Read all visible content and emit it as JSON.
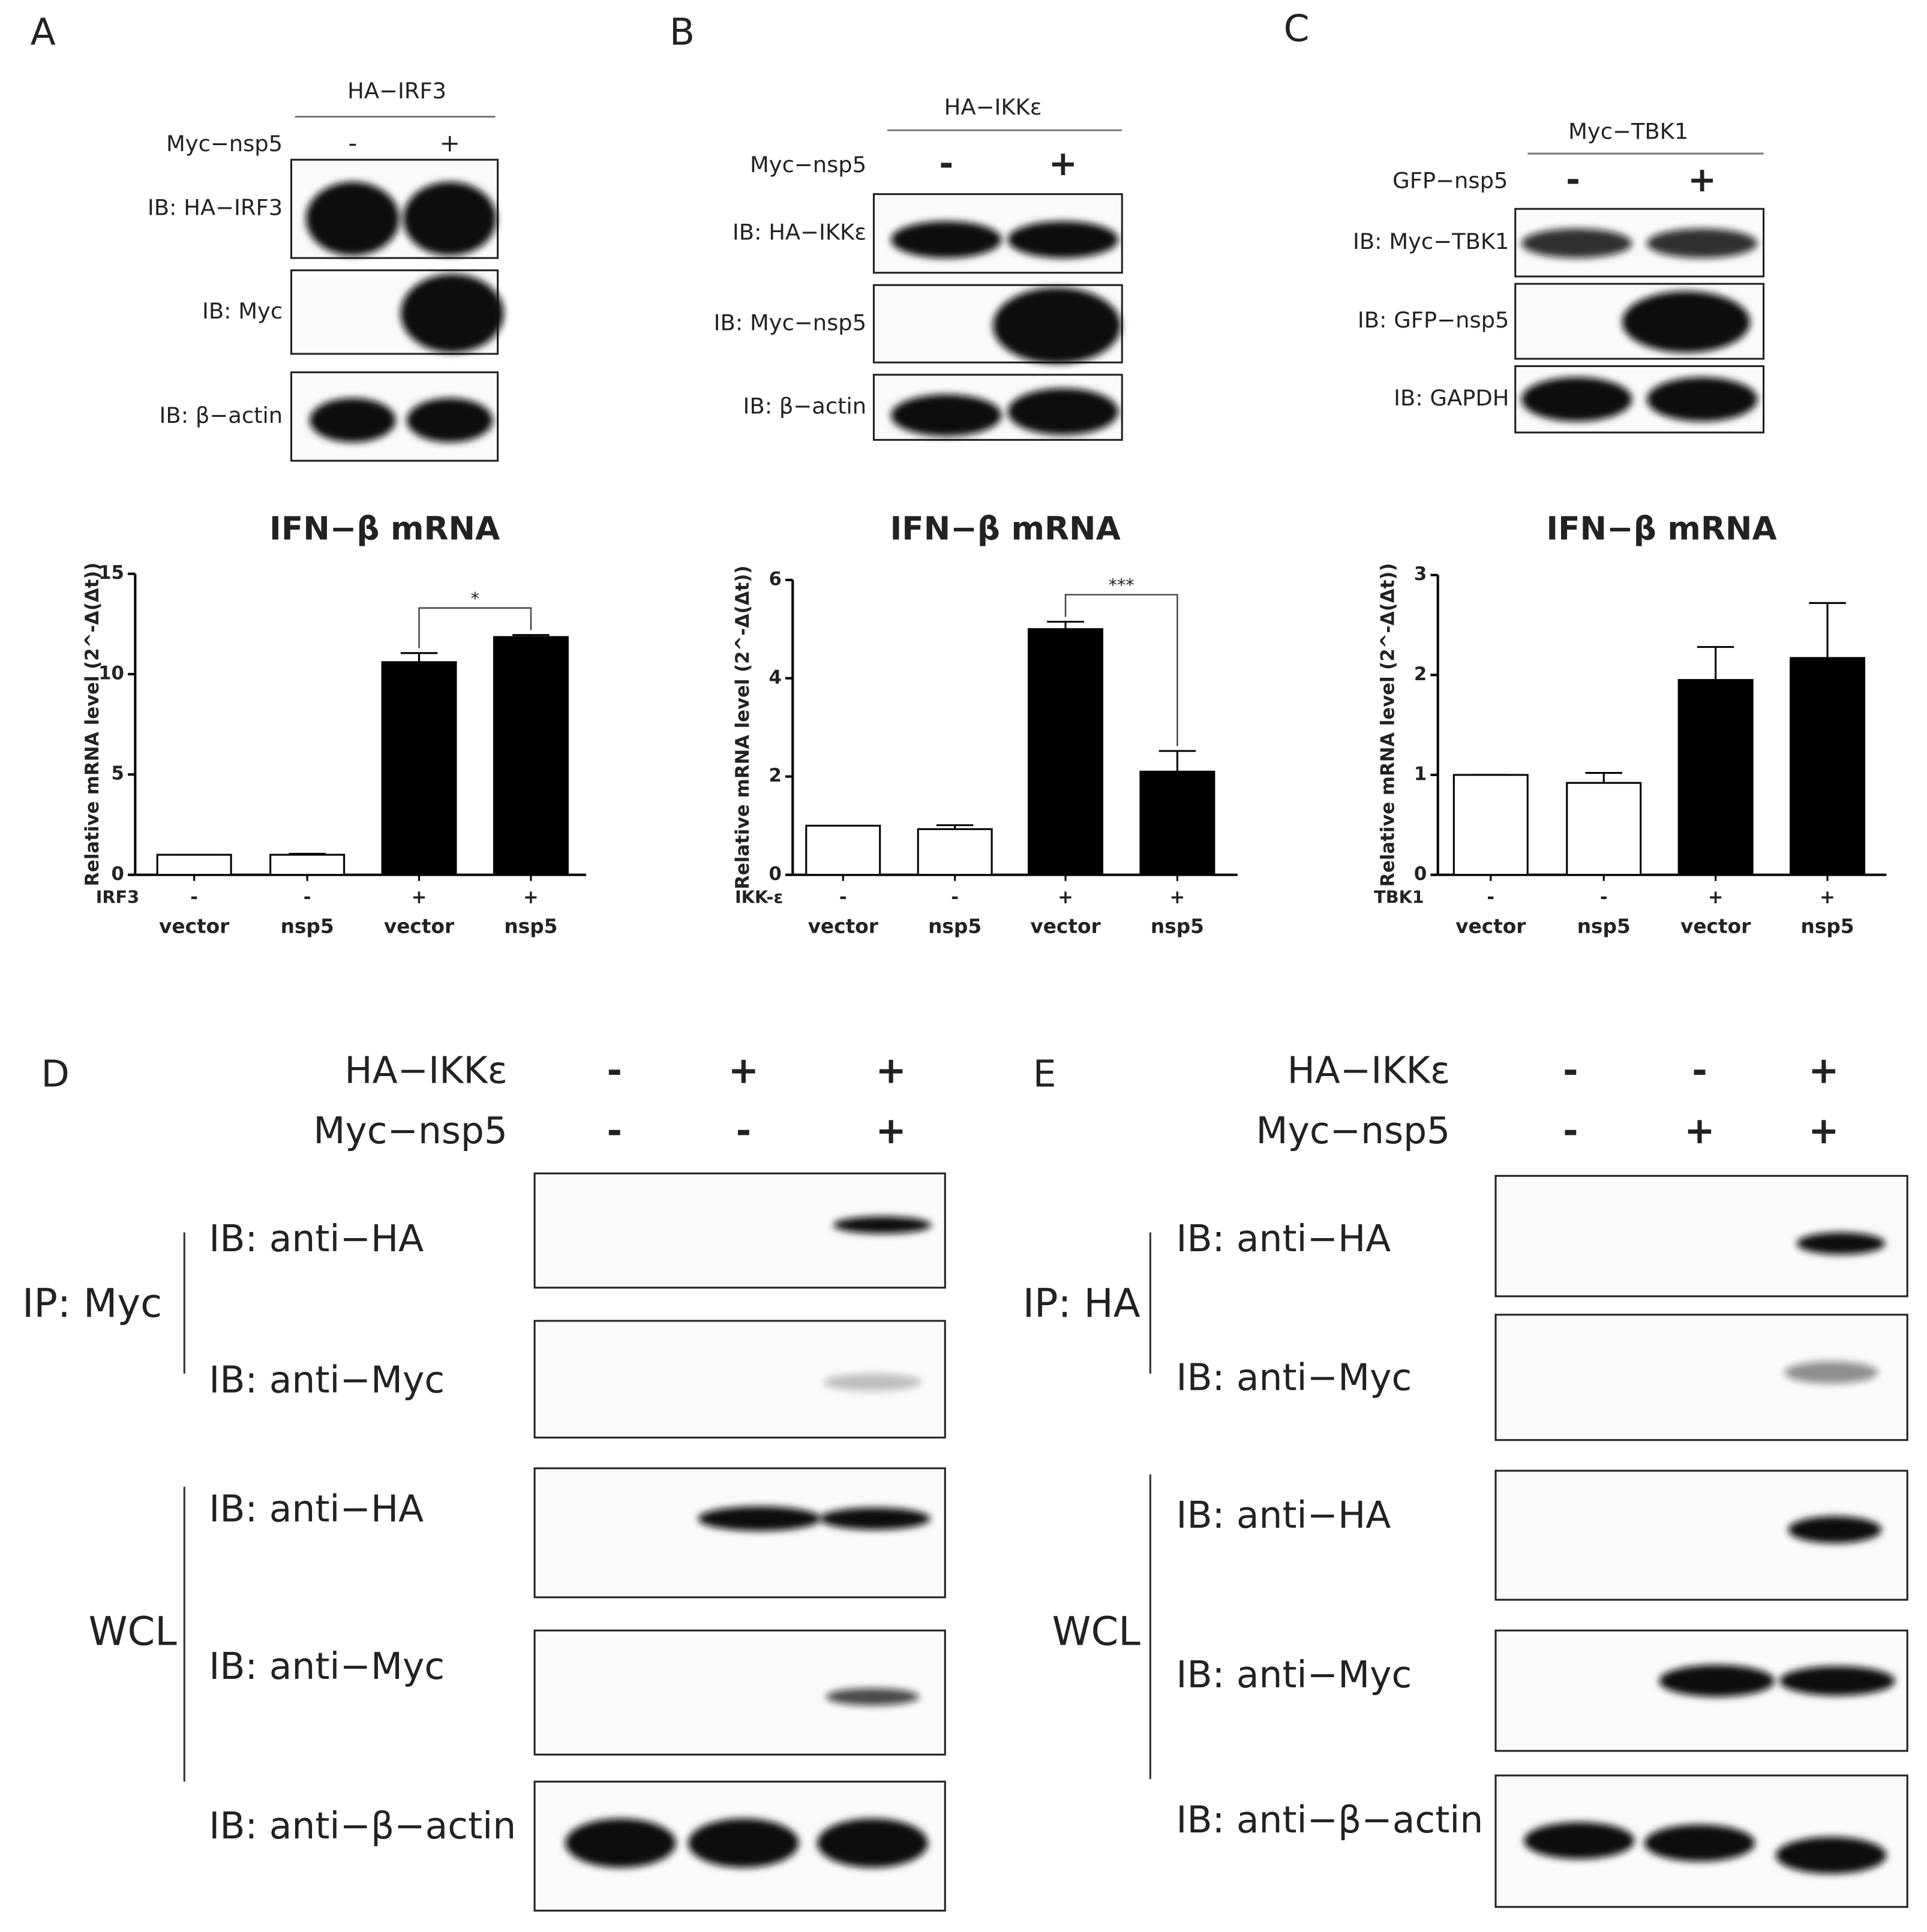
{
  "panels": {
    "A": {
      "letter": "A",
      "header": "HA−IRF3",
      "rows": [
        {
          "label": "Myc−nsp5",
          "signs": [
            "-",
            "+"
          ]
        }
      ],
      "blots": [
        "IB: HA−IRF3",
        "IB: Myc",
        "IB: β−actin"
      ]
    },
    "B": {
      "letter": "B",
      "header": "HA−IKKε",
      "rows": [
        {
          "label": "Myc−nsp5",
          "signs": [
            "-",
            "+"
          ]
        }
      ],
      "blots": [
        "IB: HA−IKKε",
        "IB: Myc−nsp5",
        "IB: β−actin"
      ]
    },
    "C": {
      "letter": "C",
      "header": "Myc−TBK1",
      "rows": [
        {
          "label": "GFP−nsp5",
          "signs": [
            "-",
            "+"
          ]
        }
      ],
      "blots": [
        "IB: Myc−TBK1",
        "IB: GFP−nsp5",
        "IB: GAPDH"
      ]
    },
    "D": {
      "letter": "D",
      "rows": [
        {
          "label": "HA−IKKε",
          "signs": [
            "-",
            "+",
            "+"
          ]
        },
        {
          "label": "Myc−nsp5",
          "signs": [
            "-",
            "-",
            "+"
          ]
        }
      ],
      "groups": [
        "IP: Myc",
        "WCL"
      ],
      "blots": [
        "IB: anti−HA",
        "IB: anti−Myc",
        "IB: anti−HA",
        "IB: anti−Myc",
        "IB: anti−β−actin"
      ]
    },
    "E": {
      "letter": "E",
      "rows": [
        {
          "label": "HA−IKKε",
          "signs": [
            "-",
            "-",
            "+"
          ]
        },
        {
          "label": "Myc−nsp5",
          "signs": [
            "-",
            "+",
            "+"
          ]
        }
      ],
      "groups": [
        "IP: HA",
        "WCL"
      ],
      "blots": [
        "IB: anti−HA",
        "IB: anti−Myc",
        "IB: anti−HA",
        "IB: anti−Myc",
        "IB: anti−β−actin"
      ]
    }
  },
  "chart_data": [
    {
      "type": "bar",
      "title": "IFN−β mRNA",
      "ylabel": "Relative mRNA level (2^-Δ(Δt))",
      "factor": {
        "label": "IRF3",
        "signs": [
          "-",
          "-",
          "+",
          "+"
        ]
      },
      "categories": [
        "vector",
        "nsp5",
        "vector",
        "nsp5"
      ],
      "values": [
        1,
        1.0,
        10.6,
        11.85
      ],
      "errors": [
        0,
        0.05,
        0.45,
        0.1
      ],
      "colors": [
        "#ffffff",
        "#ffffff",
        "#000000",
        "#000000"
      ],
      "ylim": [
        0,
        15
      ],
      "yticks": [
        0,
        5,
        10,
        15
      ],
      "significance": {
        "label": "*",
        "between": [
          2,
          3
        ]
      }
    },
    {
      "type": "bar",
      "title": "IFN−β mRNA",
      "ylabel": "Relative mRNA level (2^-Δ(Δt))",
      "factor": {
        "label": "IKK-ε",
        "signs": [
          "-",
          "-",
          "+",
          "+"
        ]
      },
      "categories": [
        "vector",
        "nsp5",
        "vector",
        "nsp5"
      ],
      "values": [
        1,
        0.93,
        5.0,
        2.1
      ],
      "errors": [
        0,
        0.08,
        0.15,
        0.42
      ],
      "colors": [
        "#ffffff",
        "#ffffff",
        "#000000",
        "#000000"
      ],
      "ylim": [
        0,
        6
      ],
      "yticks": [
        0,
        2,
        4,
        6
      ],
      "significance": {
        "label": "***",
        "between": [
          2,
          3
        ]
      }
    },
    {
      "type": "bar",
      "title": "IFN−β mRNA",
      "ylabel": "Relative mRNA level (2^-Δ(Δt))",
      "factor": {
        "label": "TBK1",
        "signs": [
          "-",
          "-",
          "+",
          "+"
        ]
      },
      "categories": [
        "vector",
        "nsp5",
        "vector",
        "nsp5"
      ],
      "values": [
        1,
        0.92,
        1.95,
        2.17
      ],
      "errors": [
        0,
        0.1,
        0.33,
        0.55
      ],
      "colors": [
        "#ffffff",
        "#ffffff",
        "#000000",
        "#000000"
      ],
      "ylim": [
        0,
        3
      ],
      "yticks": [
        0,
        1,
        2,
        3
      ]
    }
  ]
}
